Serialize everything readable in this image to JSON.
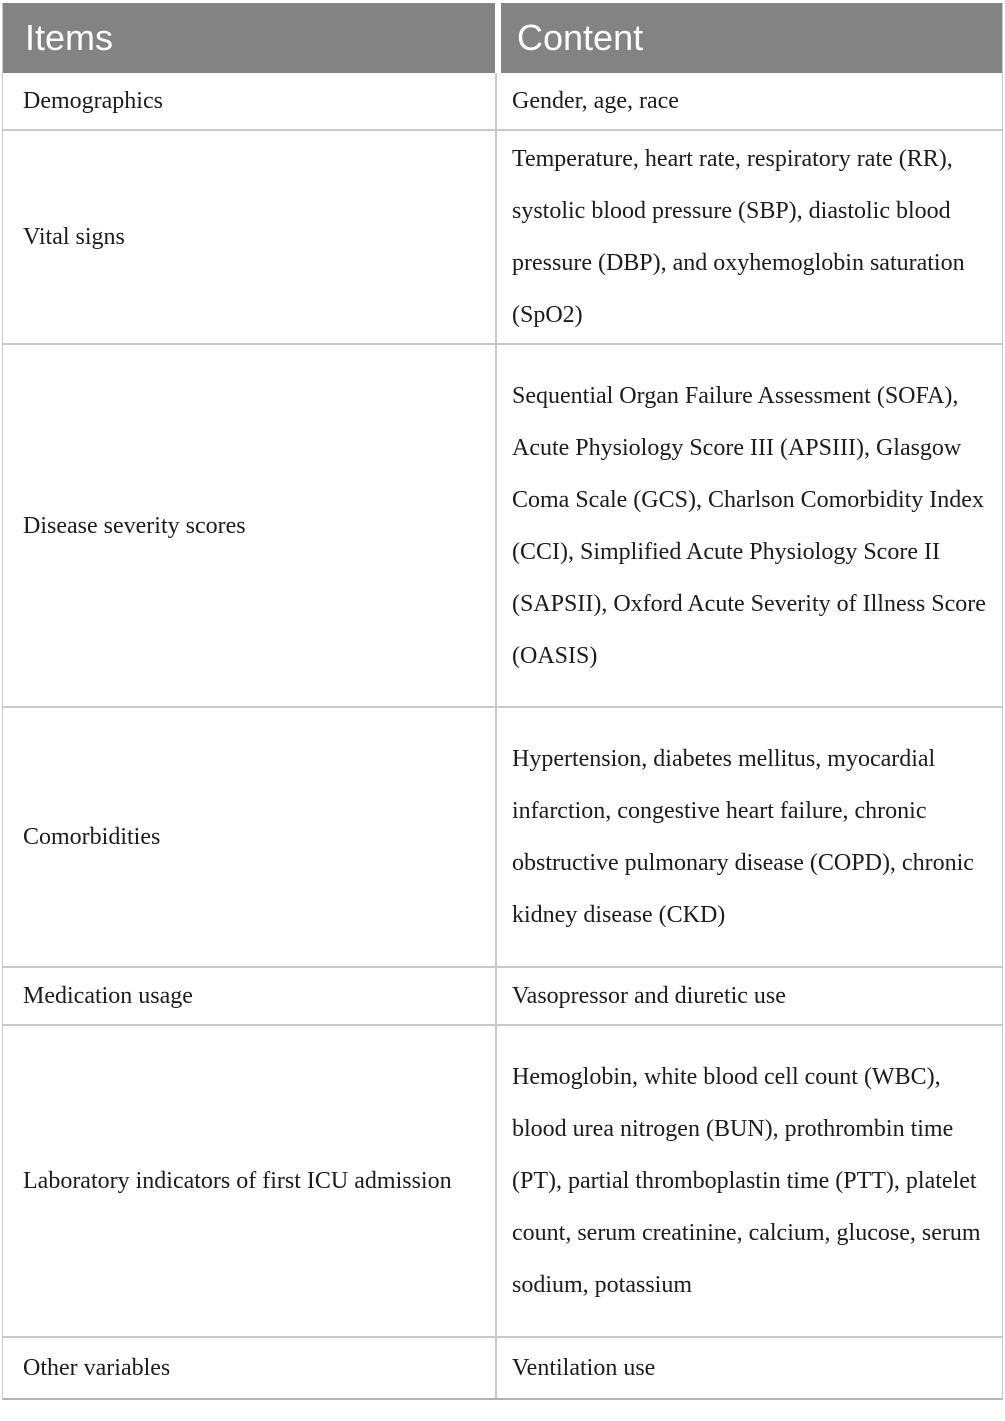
{
  "table": {
    "columns": [
      {
        "label": "Items"
      },
      {
        "label": "Content"
      }
    ],
    "rows": [
      {
        "item": "Demographics",
        "content": "Gender, age, race"
      },
      {
        "item": "Vital signs",
        "content": "Temperature, heart rate, respiratory rate (RR), systolic blood pressure (SBP), diastolic blood pressure (DBP), and oxyhemoglobin saturation (SpO2)"
      },
      {
        "item": "Disease severity scores",
        "content": "Sequential Organ Failure Assessment (SOFA), Acute Physiology Score III (APSIII), Glasgow Coma Scale (GCS), Charlson Comorbidity Index (CCI), Simplified Acute Physiology Score II (SAPSII), Oxford Acute Severity of Illness Score (OASIS)"
      },
      {
        "item": "Comorbidities",
        "content": "Hypertension, diabetes mellitus, myocardial infarction, congestive heart failure, chronic obstructive pulmonary disease (COPD), chronic kidney disease (CKD)"
      },
      {
        "item": "Medication usage",
        "content": "Vasopressor and diuretic use"
      },
      {
        "item": "Laboratory indicators of first ICU admission",
        "content": "Hemoglobin, white blood cell count (WBC), blood urea nitrogen (BUN), prothrombin time (PT), partial thromboplastin time (PTT), platelet count, serum creatinine, calcium, glucose, serum sodium, potassium"
      },
      {
        "item": "Other variables",
        "content": "Ventilation use"
      }
    ],
    "colors": {
      "header_bg": "#838383",
      "header_text": "#ffffff",
      "body_text": "#1c1c1c",
      "grid_line": "#c9c9c9"
    }
  }
}
